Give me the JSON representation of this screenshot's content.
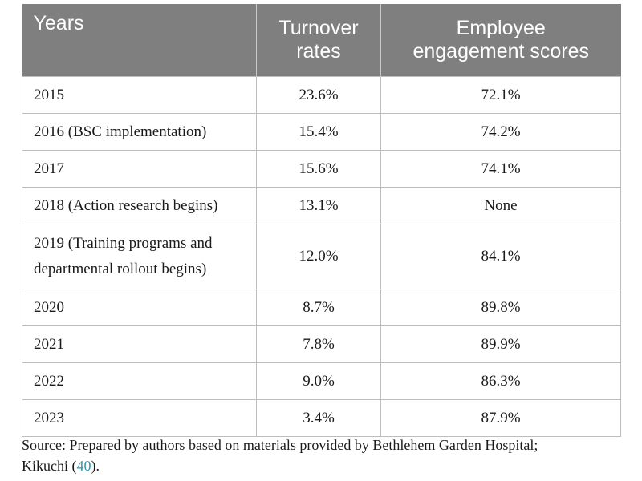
{
  "table": {
    "headers": [
      "Years",
      "Turnover rates",
      "Employee engagement scores"
    ],
    "header_lines": [
      [
        "Years"
      ],
      [
        "Turnover",
        "rates"
      ],
      [
        "Employee",
        "engagement scores"
      ]
    ],
    "rows": [
      {
        "year": [
          "2015"
        ],
        "turnover": "23.6%",
        "engagement": "72.1%"
      },
      {
        "year": [
          "2016 (BSC implementation)"
        ],
        "turnover": "15.4%",
        "engagement": "74.2%"
      },
      {
        "year": [
          "2017"
        ],
        "turnover": "15.6%",
        "engagement": "74.1%"
      },
      {
        "year": [
          "2018 (Action research begins)"
        ],
        "turnover": "13.1%",
        "engagement": "None"
      },
      {
        "year": [
          "2019 (Training programs and",
          "departmental rollout begins)"
        ],
        "turnover": "12.0%",
        "engagement": "84.1%"
      },
      {
        "year": [
          "2020"
        ],
        "turnover": "8.7%",
        "engagement": "89.8%"
      },
      {
        "year": [
          "2021"
        ],
        "turnover": "7.8%",
        "engagement": "89.9%"
      },
      {
        "year": [
          "2022"
        ],
        "turnover": "9.0%",
        "engagement": "86.3%"
      },
      {
        "year": [
          "2023"
        ],
        "turnover": "3.4%",
        "engagement": "87.9%"
      }
    ]
  },
  "source": {
    "prefix": "Source: Prepared by authors based on materials provided by Bethlehem Garden Hospital;",
    "line2_before": "Kikuchi (",
    "ref": "40",
    "line2_after": ")."
  },
  "colors": {
    "header_bg": "#7f7f7f",
    "header_text": "#ffffff",
    "border": "#bdbdbd",
    "link": "#2a9bb5"
  }
}
